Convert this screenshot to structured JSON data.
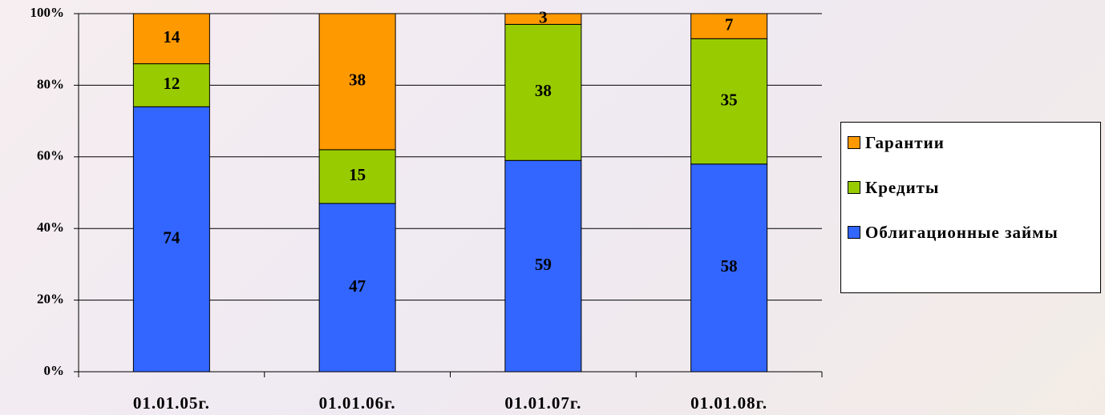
{
  "chart_data": {
    "type": "stacked_bar",
    "categories": [
      "01.01.05г.",
      "01.01.06г.",
      "01.01.07г.",
      "01.01.08г."
    ],
    "series": [
      {
        "name": "Облигационные займы",
        "color": "#3366ff",
        "values": [
          74,
          47,
          59,
          58
        ]
      },
      {
        "name": "Кредиты",
        "color": "#99cc00",
        "values": [
          12,
          15,
          38,
          35
        ]
      },
      {
        "name": "Гарантии",
        "color": "#ff9900",
        "values": [
          14,
          38,
          3,
          7
        ]
      }
    ],
    "ylim": [
      0,
      100
    ],
    "yticks": [
      {
        "value": 0,
        "label": "0%"
      },
      {
        "value": 20,
        "label": "20%"
      },
      {
        "value": 40,
        "label": "40%"
      },
      {
        "value": 60,
        "label": "60%"
      },
      {
        "value": 80,
        "label": "80%"
      },
      {
        "value": 100,
        "label": "100%"
      }
    ],
    "grid": true,
    "legend": "right"
  }
}
